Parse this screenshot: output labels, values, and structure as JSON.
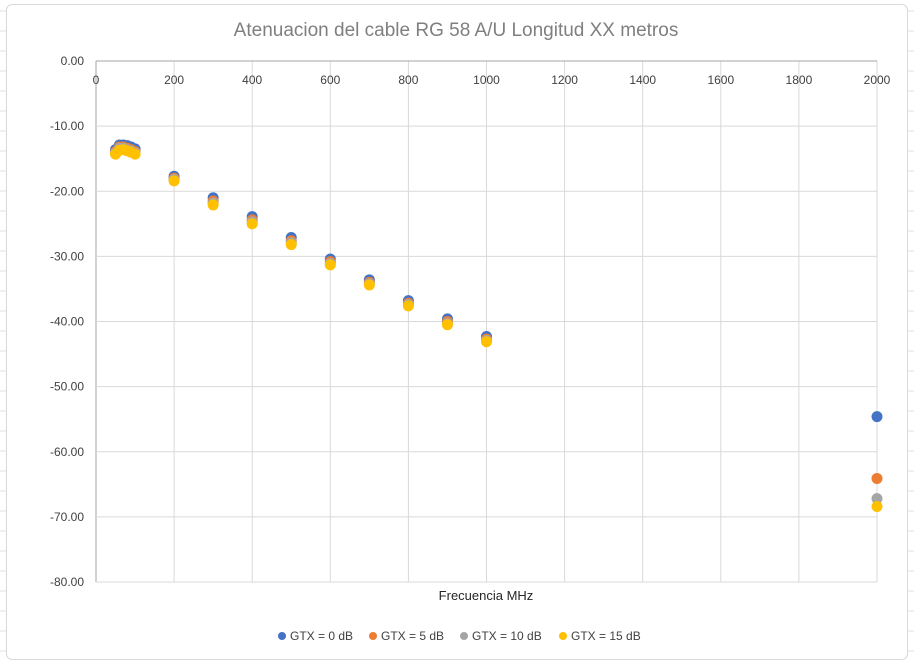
{
  "chart_data": {
    "type": "scatter",
    "title": "Atenuacion del cable RG 58 A/U Longitud XX metros",
    "xlabel": "Frecuencia MHz",
    "ylabel": "",
    "xlim": [
      0,
      2000
    ],
    "ylim": [
      -80,
      0
    ],
    "x_ticks": [
      "0",
      "200",
      "400",
      "600",
      "800",
      "1000",
      "1200",
      "1400",
      "1600",
      "1800",
      "2000"
    ],
    "y_ticks": [
      "0.00",
      "-10.00",
      "-20.00",
      "-30.00",
      "-40.00",
      "-50.00",
      "-60.00",
      "-70.00",
      "-80.00"
    ],
    "grid": true,
    "x_axis_position": "top",
    "legend_position": "bottom",
    "x": [
      50,
      60,
      70,
      80,
      90,
      100,
      200,
      300,
      400,
      500,
      600,
      700,
      800,
      900,
      1000,
      2000
    ],
    "series": [
      {
        "name": "GTX = 0 dB",
        "color": "#4472c4",
        "values": [
          -13.6,
          -12.9,
          -12.9,
          -13.0,
          -13.2,
          -13.5,
          -17.7,
          -21.0,
          -23.9,
          -27.1,
          -30.4,
          -33.6,
          -36.8,
          -39.6,
          -42.3,
          -54.6
        ]
      },
      {
        "name": "GTX = 5 dB",
        "color": "#ed7d31",
        "values": [
          -13.9,
          -13.2,
          -13.2,
          -13.4,
          -13.6,
          -13.9,
          -18.0,
          -21.5,
          -24.4,
          -27.6,
          -30.8,
          -34.0,
          -37.2,
          -40.0,
          -42.7,
          -64.1
        ]
      },
      {
        "name": "GTX = 10 dB",
        "color": "#a5a5a5",
        "values": [
          -14.1,
          -13.4,
          -13.4,
          -13.6,
          -13.8,
          -14.1,
          -18.2,
          -21.8,
          -24.7,
          -27.9,
          -31.1,
          -34.2,
          -37.4,
          -40.3,
          -42.9,
          -67.2
        ]
      },
      {
        "name": "GTX = 15 dB",
        "color": "#ffc000",
        "values": [
          -14.3,
          -13.7,
          -13.6,
          -13.8,
          -14.0,
          -14.3,
          -18.4,
          -22.1,
          -25.0,
          -28.2,
          -31.3,
          -34.4,
          -37.6,
          -40.5,
          -43.1,
          -68.4
        ]
      }
    ]
  }
}
